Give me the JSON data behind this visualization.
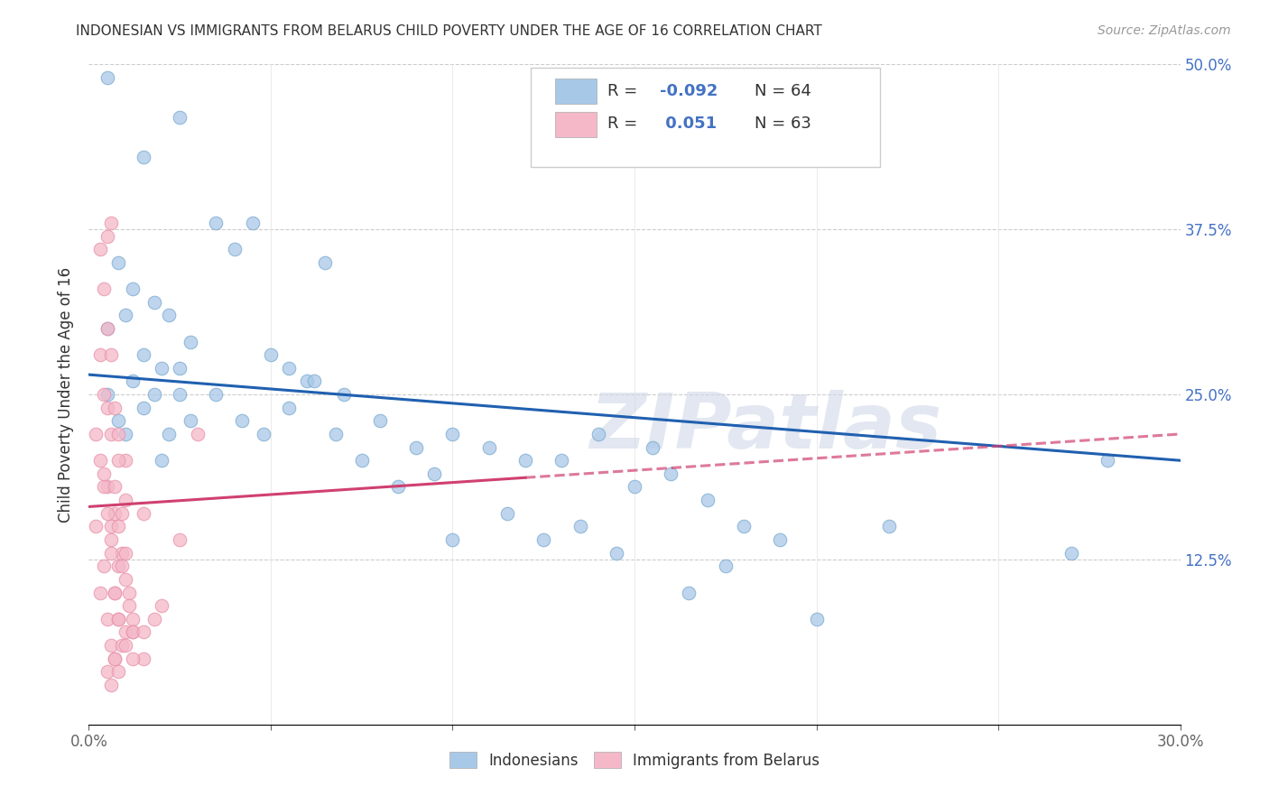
{
  "title": "INDONESIAN VS IMMIGRANTS FROM BELARUS CHILD POVERTY UNDER THE AGE OF 16 CORRELATION CHART",
  "source": "Source: ZipAtlas.com",
  "ylabel": "Child Poverty Under the Age of 16",
  "xlim": [
    0.0,
    0.3
  ],
  "ylim": [
    0.0,
    0.5
  ],
  "blue_color": "#a8c8e8",
  "pink_color": "#f4b8c8",
  "blue_line_color": "#2060b0",
  "pink_line_color": "#d04070",
  "blue_dot_edge": "#7aaad0",
  "pink_dot_edge": "#e890a8",
  "watermark": "ZIPatlas",
  "indonesians_x": [
    0.005,
    0.008,
    0.01,
    0.012,
    0.015,
    0.018,
    0.02,
    0.022,
    0.025,
    0.028,
    0.005,
    0.01,
    0.015,
    0.02,
    0.025,
    0.008,
    0.012,
    0.018,
    0.022,
    0.028,
    0.035,
    0.04,
    0.045,
    0.05,
    0.055,
    0.06,
    0.065,
    0.07,
    0.08,
    0.09,
    0.035,
    0.042,
    0.048,
    0.055,
    0.062,
    0.068,
    0.075,
    0.085,
    0.095,
    0.005,
    0.1,
    0.11,
    0.12,
    0.13,
    0.14,
    0.15,
    0.16,
    0.17,
    0.18,
    0.19,
    0.1,
    0.115,
    0.125,
    0.135,
    0.145,
    0.155,
    0.165,
    0.175,
    0.22,
    0.27,
    0.015,
    0.025,
    0.2,
    0.28
  ],
  "indonesians_y": [
    0.25,
    0.23,
    0.22,
    0.26,
    0.24,
    0.25,
    0.2,
    0.22,
    0.25,
    0.23,
    0.3,
    0.31,
    0.28,
    0.27,
    0.27,
    0.35,
    0.33,
    0.32,
    0.31,
    0.29,
    0.38,
    0.36,
    0.38,
    0.28,
    0.27,
    0.26,
    0.35,
    0.25,
    0.23,
    0.21,
    0.25,
    0.23,
    0.22,
    0.24,
    0.26,
    0.22,
    0.2,
    0.18,
    0.19,
    0.49,
    0.22,
    0.21,
    0.2,
    0.2,
    0.22,
    0.18,
    0.19,
    0.17,
    0.15,
    0.14,
    0.14,
    0.16,
    0.14,
    0.15,
    0.13,
    0.21,
    0.1,
    0.12,
    0.15,
    0.13,
    0.43,
    0.46,
    0.08,
    0.2
  ],
  "belarus_x": [
    0.002,
    0.003,
    0.004,
    0.005,
    0.005,
    0.006,
    0.006,
    0.007,
    0.007,
    0.008,
    0.002,
    0.003,
    0.004,
    0.005,
    0.006,
    0.007,
    0.008,
    0.009,
    0.01,
    0.01,
    0.003,
    0.004,
    0.005,
    0.006,
    0.007,
    0.008,
    0.009,
    0.01,
    0.011,
    0.012,
    0.003,
    0.004,
    0.005,
    0.006,
    0.007,
    0.008,
    0.009,
    0.01,
    0.011,
    0.012,
    0.004,
    0.005,
    0.006,
    0.007,
    0.008,
    0.009,
    0.01,
    0.012,
    0.015,
    0.015,
    0.005,
    0.006,
    0.007,
    0.008,
    0.01,
    0.012,
    0.015,
    0.018,
    0.02,
    0.025,
    0.006,
    0.008,
    0.03
  ],
  "belarus_y": [
    0.15,
    0.1,
    0.12,
    0.18,
    0.08,
    0.14,
    0.06,
    0.16,
    0.05,
    0.12,
    0.22,
    0.2,
    0.18,
    0.24,
    0.15,
    0.1,
    0.08,
    0.13,
    0.07,
    0.2,
    0.28,
    0.25,
    0.3,
    0.22,
    0.18,
    0.15,
    0.12,
    0.17,
    0.1,
    0.08,
    0.36,
    0.33,
    0.37,
    0.28,
    0.24,
    0.2,
    0.16,
    0.13,
    0.09,
    0.07,
    0.19,
    0.16,
    0.13,
    0.1,
    0.08,
    0.06,
    0.11,
    0.07,
    0.16,
    0.05,
    0.04,
    0.03,
    0.05,
    0.04,
    0.06,
    0.05,
    0.07,
    0.08,
    0.09,
    0.14,
    0.38,
    0.22,
    0.22
  ],
  "blue_trend_x0": 0.0,
  "blue_trend_y0": 0.265,
  "blue_trend_x1": 0.3,
  "blue_trend_y1": 0.2,
  "pink_trend_x0": 0.0,
  "pink_trend_y0": 0.165,
  "pink_trend_x1": 0.3,
  "pink_trend_y1": 0.22
}
